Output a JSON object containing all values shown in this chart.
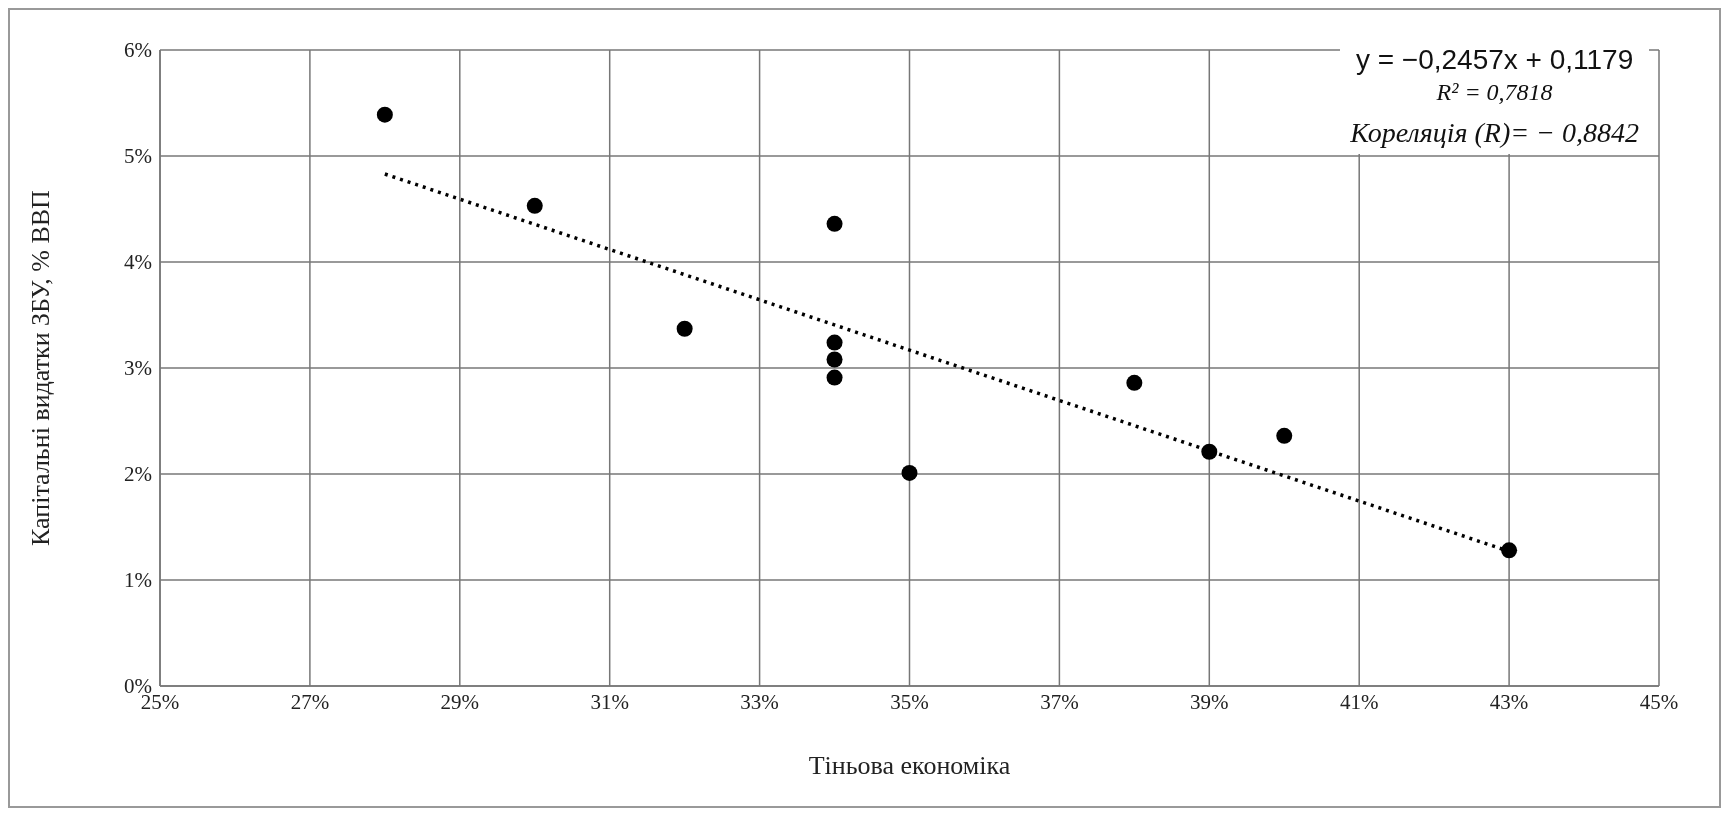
{
  "chart_data": {
    "type": "scatter",
    "xlabel": "Тіньова економіка",
    "ylabel": "Капітальні видатки ЗБУ, % ВВП",
    "series": [
      {
        "color": "#000000",
        "marker": "circle",
        "x": [
          28,
          30,
          34,
          32,
          34,
          34,
          34,
          35,
          38,
          39,
          40,
          43
        ],
        "values": [
          5.39,
          4.53,
          4.36,
          3.37,
          3.24,
          3.08,
          2.91,
          2.01,
          2.86,
          2.21,
          2.36,
          1.28
        ]
      },
      {
        "type": "line",
        "color": "#000000",
        "marker": "none",
        "line_style": "dotted",
        "x": [
          28,
          43
        ],
        "values": [
          4.83,
          1.27
        ]
      }
    ],
    "xlim": [
      25,
      45
    ],
    "xticks": [
      {
        "value": 25,
        "label": "25%"
      },
      {
        "value": 27,
        "label": "27%"
      },
      {
        "value": 29,
        "label": "29%"
      },
      {
        "value": 31,
        "label": "31%"
      },
      {
        "value": 33,
        "label": "33%"
      },
      {
        "value": 35,
        "label": "35%"
      },
      {
        "value": 37,
        "label": "37%"
      },
      {
        "value": 39,
        "label": "39%"
      },
      {
        "value": 41,
        "label": "41%"
      },
      {
        "value": 43,
        "label": "43%"
      },
      {
        "value": 45,
        "label": "45%"
      }
    ],
    "ylim": [
      0,
      6
    ],
    "yticks": [
      {
        "value": 0,
        "label": "0%"
      },
      {
        "value": 1,
        "label": "1%"
      },
      {
        "value": 2,
        "label": "2%"
      },
      {
        "value": 3,
        "label": "3%"
      },
      {
        "value": 4,
        "label": "4%"
      },
      {
        "value": 5,
        "label": "5%"
      },
      {
        "value": 6,
        "label": "6%"
      }
    ],
    "grid": true,
    "legend": false,
    "annotations": [
      "y = −0,2457x + 0,1179",
      "R² = 0,7818",
      "Кореляція (R)= − 0,8842"
    ]
  }
}
